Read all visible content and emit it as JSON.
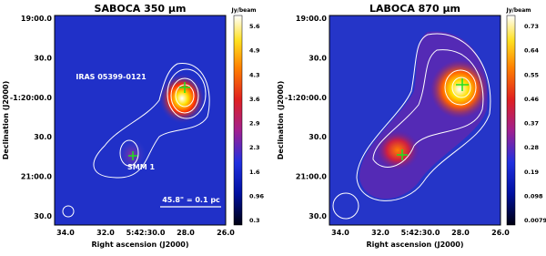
{
  "panels": [
    {
      "title": "SABOCA 350 µm",
      "unit": "Jy/beam",
      "xlabel": "Right ascension (J2000)",
      "ylabel": "Declination (J2000)",
      "xtick_labels": [
        "34.0",
        "32.0",
        "5:42:30.0",
        "28.0",
        "26.0"
      ],
      "ytick_labels": [
        "19:00.0",
        "30.0",
        "-1:20:00.0",
        "30.0",
        "21:00.0",
        "30.0"
      ],
      "colorbar_labels": [
        "5.6",
        "4.9",
        "4.3",
        "3.6",
        "2.9",
        "2.3",
        "1.6",
        "0.96",
        "0.3"
      ],
      "annotations": [
        "IRAS 05399-0121",
        "SMM 1",
        "45.8\" = 0.1 pc"
      ]
    },
    {
      "title": "LABOCA 870 µm",
      "unit": "Jy/beam",
      "xlabel": "Right ascension (J2000)",
      "ylabel": "Declination (J2000)",
      "xtick_labels": [
        "34.0",
        "32.0",
        "5:42:30.0",
        "28.0",
        "26.0"
      ],
      "ytick_labels": [
        "19:00.0",
        "30.0",
        "-1:20:00.0",
        "30.0",
        "21:00.0",
        "30.0"
      ],
      "colorbar_labels": [
        "0.73",
        "0.64",
        "0.55",
        "0.46",
        "0.37",
        "0.28",
        "0.19",
        "0.098",
        "0.0079"
      ],
      "annotations": []
    }
  ]
}
